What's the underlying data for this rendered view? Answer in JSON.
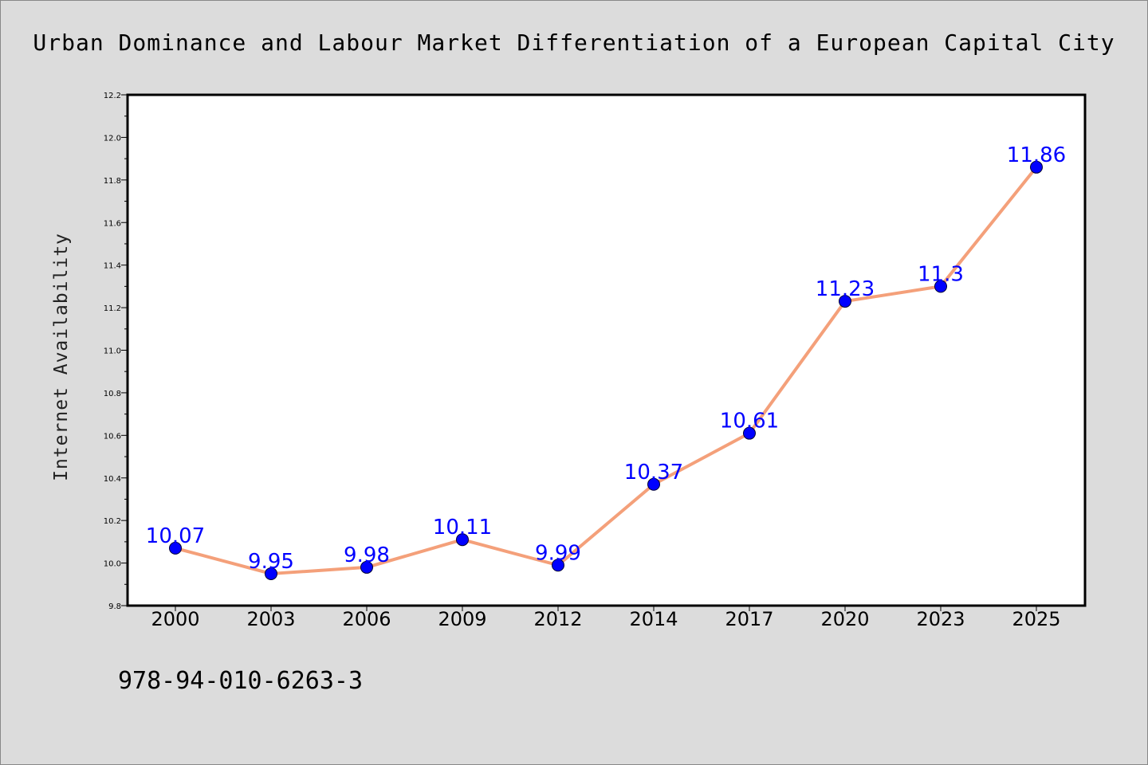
{
  "chart_data": {
    "type": "line",
    "title": "Urban Dominance and Labour Market Differentiation of a European Capital City",
    "xlabel": "",
    "ylabel": "Internet Availability",
    "categories": [
      "2000",
      "2003",
      "2006",
      "2009",
      "2012",
      "2014",
      "2017",
      "2020",
      "2023",
      "2025"
    ],
    "series": [
      {
        "values": [
          10.07,
          9.95,
          9.98,
          10.11,
          9.99,
          10.37,
          10.61,
          11.23,
          11.3,
          11.86
        ],
        "labels": [
          "10.07",
          "9.95",
          "9.98",
          "10.11",
          "9.99",
          "10.37",
          "10.61",
          "11.23",
          "11.3",
          "11.86"
        ]
      }
    ],
    "ylim": [
      9.8,
      12.2
    ],
    "yticks": [
      "9.8",
      "10.0",
      "10.2",
      "10.4",
      "10.6",
      "10.8",
      "11.0",
      "11.2",
      "11.4",
      "11.6",
      "11.8",
      "12.0",
      "12.2"
    ],
    "grid": false,
    "colors": {
      "line": "#f4a07a",
      "marker": "#0000ff",
      "label": "#0000ff",
      "background": "#dcdcdc",
      "plot_background": "#ffffff"
    }
  },
  "footer": {
    "isbn": "978-94-010-6263-3"
  }
}
